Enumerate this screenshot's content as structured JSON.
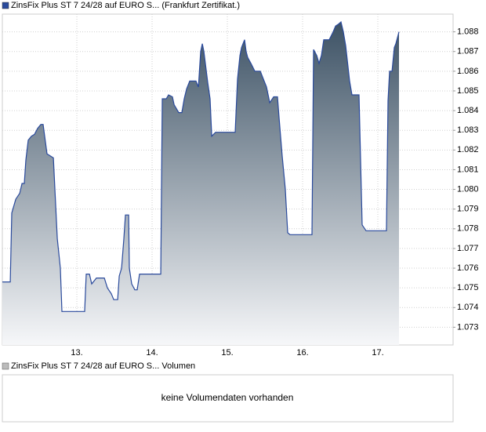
{
  "chart_data": [
    {
      "type": "line",
      "series": [
        {
          "name": "ZinsFix Plus ST 7 24/28 auf EURO S... (Frankfurt Zertifikat.)",
          "color": "#2a4a9c",
          "values": [
            1.0753,
            1.0753,
            1.0788,
            1.0795,
            1.0798,
            1.0803,
            1.0803,
            1.0815,
            1.0825,
            1.0827,
            1.0828,
            1.0831,
            1.0833,
            1.0833,
            1.0818,
            1.0816,
            1.0775,
            1.076,
            1.0738,
            1.0738,
            1.0738,
            1.0757,
            1.0757,
            1.0752,
            1.0755,
            1.0755,
            1.075,
            1.0747,
            1.0744,
            1.0744,
            1.0756,
            1.076,
            1.0775,
            1.0787,
            1.0787,
            1.076,
            1.0752,
            1.0749,
            1.0749,
            1.0757,
            1.0757,
            1.0846,
            1.0846,
            1.0848,
            1.0847,
            1.0843,
            1.0839,
            1.0839,
            1.0846,
            1.0851,
            1.0855,
            1.0855,
            1.0852,
            1.087,
            1.0874,
            1.087,
            1.0854,
            1.0846,
            1.0827,
            1.0829,
            1.0829,
            1.0856,
            1.0868,
            1.0872,
            1.0876,
            1.087,
            1.0867,
            1.0864,
            1.086,
            1.086,
            1.0856,
            1.0852,
            1.0844,
            1.0847,
            1.0847,
            1.0836,
            1.0817,
            1.08,
            1.0778,
            1.0777,
            1.0777,
            1.0871,
            1.0868,
            1.0864,
            1.0868,
            1.0876,
            1.0876,
            1.088,
            1.0883,
            1.0884,
            1.0885,
            1.088,
            1.0873,
            1.0855,
            1.0848,
            1.0848,
            1.0782,
            1.0779,
            1.0779,
            1.0845,
            1.086,
            1.086,
            1.0872,
            1.0874,
            1.088
          ]
        }
      ],
      "x": [
        12.01,
        12.115,
        12.135,
        12.188,
        12.24,
        12.271,
        12.302,
        12.323,
        12.354,
        12.396,
        12.438,
        12.479,
        12.521,
        12.552,
        12.604,
        12.688,
        12.74,
        12.781,
        12.802,
        12.833,
        13.104,
        13.125,
        13.167,
        13.198,
        13.26,
        13.365,
        13.406,
        13.458,
        13.49,
        13.542,
        13.563,
        13.594,
        13.625,
        13.646,
        13.688,
        13.698,
        13.729,
        13.771,
        13.802,
        13.833,
        14.115,
        14.135,
        14.188,
        14.219,
        14.271,
        14.292,
        14.354,
        14.396,
        14.427,
        14.458,
        14.5,
        14.583,
        14.615,
        14.646,
        14.667,
        14.688,
        14.74,
        14.771,
        14.792,
        14.844,
        15.104,
        15.135,
        15.167,
        15.188,
        15.229,
        15.25,
        15.271,
        15.313,
        15.365,
        15.438,
        15.479,
        15.521,
        15.563,
        15.615,
        15.667,
        15.688,
        15.729,
        15.771,
        15.802,
        15.833,
        16.125,
        16.146,
        16.188,
        16.219,
        16.25,
        16.281,
        16.354,
        16.406,
        16.438,
        16.479,
        16.51,
        16.542,
        16.573,
        16.625,
        16.656,
        16.75,
        16.792,
        16.844,
        17.115,
        17.135,
        17.156,
        17.188,
        17.219,
        17.24,
        17.281
      ],
      "xlim": [
        12.01,
        18.0
      ],
      "xticks": [
        {
          "value": 13,
          "label": "13."
        },
        {
          "value": 14,
          "label": "14."
        },
        {
          "value": 15,
          "label": "15."
        },
        {
          "value": 16,
          "label": "16."
        },
        {
          "value": 17,
          "label": "17."
        }
      ],
      "ylim": [
        1.0721,
        1.0889
      ],
      "yticks": [
        1.073,
        1.074,
        1.075,
        1.076,
        1.077,
        1.078,
        1.079,
        {
          "value": 1.08,
          "label": "1.080"
        },
        1.081,
        1.082,
        1.083,
        1.084,
        1.085,
        1.086,
        1.087,
        1.088
      ],
      "grid": true
    },
    {
      "type": "volume",
      "series": [
        {
          "name": "ZinsFix Plus ST 7 24/28 auf EURO S... Volumen",
          "color": "#bbbbbb"
        }
      ],
      "message": "keine Volumendaten vorhanden"
    }
  ]
}
